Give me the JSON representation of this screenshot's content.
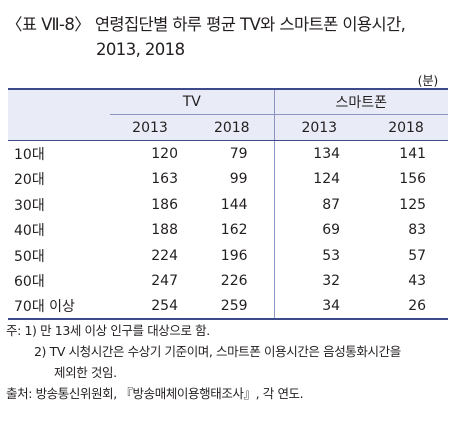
{
  "caption": {
    "label": "〈표 Ⅶ-8〉",
    "title_line1": "연령집단별 하루 평균 TV와 스마트폰 이용시간,",
    "title_line2": "2013, 2018"
  },
  "unit": "(분)",
  "table": {
    "group_headers": [
      "TV",
      "스마트폰"
    ],
    "year_headers": [
      "2013",
      "2018",
      "2013",
      "2018"
    ],
    "rows": [
      {
        "age": "10대",
        "tv_2013": "120",
        "tv_2018": "79",
        "sp_2013": "134",
        "sp_2018": "141"
      },
      {
        "age": "20대",
        "tv_2013": "163",
        "tv_2018": "99",
        "sp_2013": "124",
        "sp_2018": "156"
      },
      {
        "age": "30대",
        "tv_2013": "186",
        "tv_2018": "144",
        "sp_2013": "87",
        "sp_2018": "125"
      },
      {
        "age": "40대",
        "tv_2013": "188",
        "tv_2018": "162",
        "sp_2013": "69",
        "sp_2018": "83"
      },
      {
        "age": "50대",
        "tv_2013": "224",
        "tv_2018": "196",
        "sp_2013": "53",
        "sp_2018": "57"
      },
      {
        "age": "60대",
        "tv_2013": "247",
        "tv_2018": "226",
        "sp_2013": "32",
        "sp_2018": "43"
      },
      {
        "age": "70대 이상",
        "tv_2013": "254",
        "tv_2018": "259",
        "sp_2013": "34",
        "sp_2018": "26"
      }
    ]
  },
  "notes": {
    "note1": "주: 1) 만 13세 이상 인구를 대상으로 함.",
    "note2_line1": "2) TV 시청시간은 수상기 기준이며, 스마트폰 이용시간은 음성통화시간을",
    "note2_line2": "제외한 것임.",
    "source": "출처: 방송통신위원회, 『방송매체이용행태조사』, 각 연도."
  }
}
